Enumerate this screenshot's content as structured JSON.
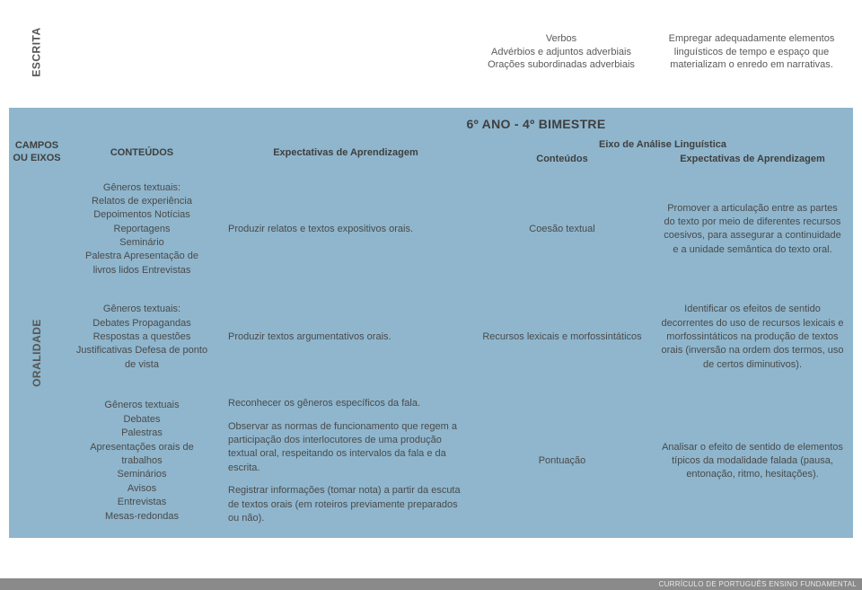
{
  "escrita": {
    "label": "ESCRITA",
    "col2": "Verbos\nAdvérbios e adjuntos adverbiais\nOrações subordinadas adverbiais",
    "col3": "Empregar adequadamente elementos linguísticos de tempo e espaço que materializam o enredo em narrativas."
  },
  "main": {
    "title": "6º ANO - 4º BIMESTRE",
    "header": {
      "campos": "CAMPOS OU EIXOS",
      "conteudos": "CONTEÚDOS",
      "expect": "Expectativas de Aprendizagem",
      "eixo": "Eixo de Análise Linguística",
      "eixo_sub1": "Conteúdos",
      "eixo_sub2": "Expectativas de Aprendizagem"
    },
    "oralidade_label": "ORALIDADE",
    "rows": [
      {
        "generos": "Gêneros textuais:\nRelatos de experiência\nDepoimentos Notícias\nReportagens\nSeminário\nPalestra Apresentação de livros lidos Entrevistas",
        "expect": [
          "Produzir relatos e textos expositivos orais."
        ],
        "eixo1": "Coesão textual",
        "eixo2": "Promover a articulação entre as partes do texto por meio de diferentes recursos coesivos, para assegurar a continuidade e a unidade semântica do texto oral."
      },
      {
        "generos": "Gêneros textuais:\nDebates Propagandas\nRespostas a questões\nJustificativas Defesa de ponto de vista",
        "expect": [
          "Produzir textos argumentativos orais."
        ],
        "eixo1": "Recursos lexicais e morfossintáticos",
        "eixo2": "Identificar os efeitos de sentido decorrentes do uso de recursos lexicais e morfossintáticos na produção de textos orais (inversão na ordem dos termos, uso de certos diminutivos)."
      },
      {
        "generos": "Gêneros textuais\nDebates\nPalestras\nApresentações orais de trabalhos\nSeminários\nAvisos\nEntrevistas\nMesas-redondas",
        "expect": [
          "Reconhecer os gêneros específicos da fala.",
          "Observar as normas de funcionamento que regem a participação dos interlocutores de uma produção textual oral, respeitando os intervalos da fala e da escrita.",
          "Registrar informações (tomar nota) a partir da escuta de textos orais (em roteiros previamente preparados ou não)."
        ],
        "eixo1": "Pontuação",
        "eixo2": "Analisar o efeito de sentido de elementos típicos da modalidade falada (pausa, entonação, ritmo, hesitações)."
      }
    ]
  },
  "footer": "CURRÍCULO DE PORTUGUÊS ENSINO FUNDAMENTAL",
  "colors": {
    "blue": "#8fb6cd",
    "text": "#5a5a5a",
    "heading": "#3f3f3f",
    "footer_bg": "#8a8a8a"
  }
}
